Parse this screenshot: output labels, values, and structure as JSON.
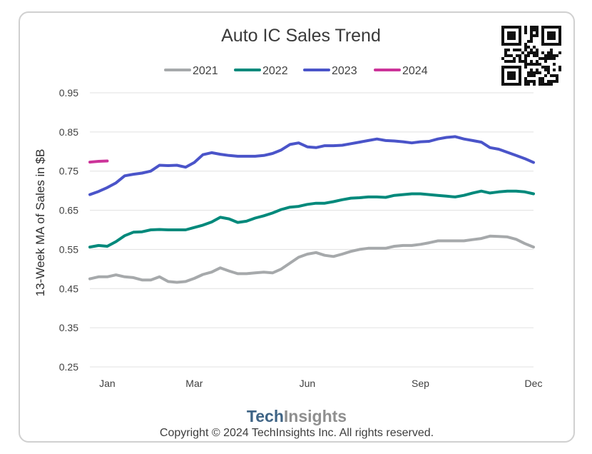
{
  "chart_data": {
    "type": "line",
    "title": "Auto IC Sales Trend",
    "ylabel": "13-Week MA of Sales in $B",
    "xlabel": "",
    "ylim": [
      0.25,
      0.95
    ],
    "yticks": [
      "0.95",
      "0.85",
      "0.75",
      "0.65",
      "0.55",
      "0.45",
      "0.35",
      "0.25"
    ],
    "ytick_values": [
      0.95,
      0.85,
      0.75,
      0.65,
      0.55,
      0.45,
      0.35,
      0.25
    ],
    "xlim": [
      1,
      52
    ],
    "xticks": [
      {
        "label": "Jan",
        "week": 3
      },
      {
        "label": "Mar",
        "week": 13
      },
      {
        "label": "Jun",
        "week": 26
      },
      {
        "label": "Sep",
        "week": 39
      },
      {
        "label": "Dec",
        "week": 52
      }
    ],
    "grid": true,
    "legend_position": "top",
    "series": [
      {
        "name": "2021",
        "color": "#a6a9ab",
        "x": [
          1,
          2,
          3,
          4,
          5,
          6,
          7,
          8,
          9,
          10,
          11,
          12,
          13,
          14,
          15,
          16,
          17,
          18,
          19,
          20,
          21,
          22,
          23,
          24,
          25,
          26,
          27,
          28,
          29,
          30,
          31,
          32,
          33,
          34,
          35,
          36,
          37,
          38,
          39,
          40,
          41,
          42,
          43,
          44,
          45,
          46,
          47,
          48,
          49,
          50,
          51,
          52
        ],
        "values": [
          0.475,
          0.48,
          0.48,
          0.485,
          0.48,
          0.478,
          0.472,
          0.472,
          0.48,
          0.468,
          0.466,
          0.468,
          0.476,
          0.486,
          0.492,
          0.503,
          0.495,
          0.488,
          0.488,
          0.49,
          0.492,
          0.49,
          0.5,
          0.515,
          0.53,
          0.538,
          0.542,
          0.535,
          0.532,
          0.538,
          0.545,
          0.55,
          0.553,
          0.553,
          0.553,
          0.558,
          0.56,
          0.56,
          0.563,
          0.567,
          0.572,
          0.572,
          0.572,
          0.572,
          0.575,
          0.578,
          0.584,
          0.583,
          0.582,
          0.576,
          0.565,
          0.556
        ]
      },
      {
        "name": "2022",
        "color": "#00897b",
        "x": [
          1,
          2,
          3,
          4,
          5,
          6,
          7,
          8,
          9,
          10,
          11,
          12,
          13,
          14,
          15,
          16,
          17,
          18,
          19,
          20,
          21,
          22,
          23,
          24,
          25,
          26,
          27,
          28,
          29,
          30,
          31,
          32,
          33,
          34,
          35,
          36,
          37,
          38,
          39,
          40,
          41,
          42,
          43,
          44,
          45,
          46,
          47,
          48,
          49,
          50,
          51,
          52
        ],
        "values": [
          0.556,
          0.56,
          0.558,
          0.57,
          0.585,
          0.594,
          0.595,
          0.6,
          0.601,
          0.6,
          0.6,
          0.6,
          0.606,
          0.612,
          0.62,
          0.632,
          0.628,
          0.619,
          0.622,
          0.63,
          0.636,
          0.643,
          0.652,
          0.658,
          0.66,
          0.665,
          0.668,
          0.668,
          0.672,
          0.677,
          0.681,
          0.682,
          0.684,
          0.684,
          0.683,
          0.688,
          0.69,
          0.692,
          0.692,
          0.69,
          0.688,
          0.686,
          0.684,
          0.688,
          0.694,
          0.699,
          0.694,
          0.697,
          0.699,
          0.699,
          0.697,
          0.692
        ]
      },
      {
        "name": "2023",
        "color": "#4a54c9",
        "x": [
          1,
          2,
          3,
          4,
          5,
          6,
          7,
          8,
          9,
          10,
          11,
          12,
          13,
          14,
          15,
          16,
          17,
          18,
          19,
          20,
          21,
          22,
          23,
          24,
          25,
          26,
          27,
          28,
          29,
          30,
          31,
          32,
          33,
          34,
          35,
          36,
          37,
          38,
          39,
          40,
          41,
          42,
          43,
          44,
          45,
          46,
          47,
          48,
          49,
          50,
          51,
          52
        ],
        "values": [
          0.69,
          0.698,
          0.708,
          0.72,
          0.738,
          0.742,
          0.745,
          0.75,
          0.765,
          0.764,
          0.765,
          0.76,
          0.772,
          0.792,
          0.797,
          0.793,
          0.79,
          0.788,
          0.788,
          0.788,
          0.79,
          0.795,
          0.804,
          0.818,
          0.822,
          0.812,
          0.81,
          0.815,
          0.815,
          0.816,
          0.82,
          0.824,
          0.828,
          0.832,
          0.828,
          0.827,
          0.825,
          0.822,
          0.825,
          0.826,
          0.832,
          0.836,
          0.838,
          0.832,
          0.828,
          0.824,
          0.81,
          0.806,
          0.798,
          0.79,
          0.782,
          0.772
        ]
      },
      {
        "name": "2024",
        "color": "#cc3399",
        "x": [
          1,
          2,
          3
        ],
        "values": [
          0.773,
          0.775,
          0.776
        ]
      }
    ]
  },
  "branding": {
    "logo_part1": "Tech",
    "logo_part2": "Insights",
    "copyright": "Copyright © 2024 TechInsights Inc.  All rights reserved."
  }
}
